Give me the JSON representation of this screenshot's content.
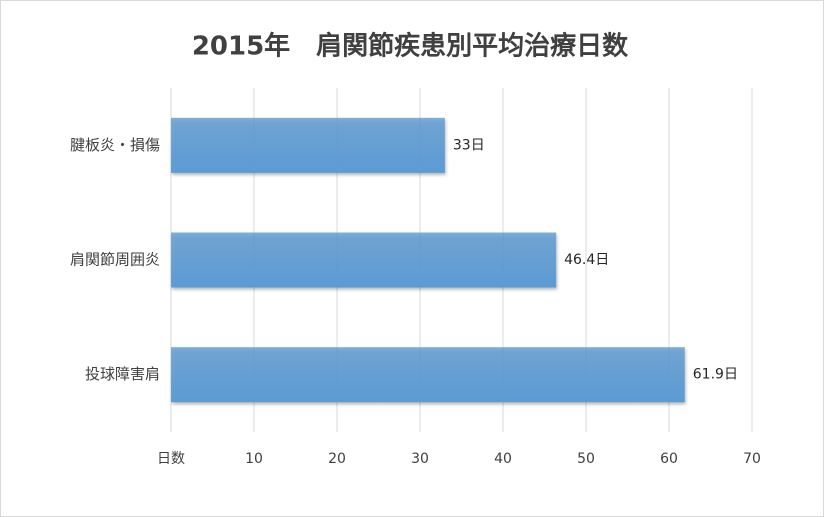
{
  "chart_data": {
    "type": "bar",
    "orientation": "horizontal",
    "title": "2015年　肩関節疾患別平均治療日数",
    "categories": [
      "腱板炎・損傷",
      "肩関節周囲炎",
      "投球障害肩"
    ],
    "values": [
      33,
      46.4,
      61.9
    ],
    "value_labels": [
      "33日",
      "46.4日",
      "61.9日"
    ],
    "color": "#5b9bd5",
    "xlim": [
      0,
      70
    ],
    "xticks": [
      {
        "value": 0,
        "label": "日数"
      },
      10,
      20,
      30,
      40,
      50,
      60,
      70
    ],
    "grid": true
  }
}
